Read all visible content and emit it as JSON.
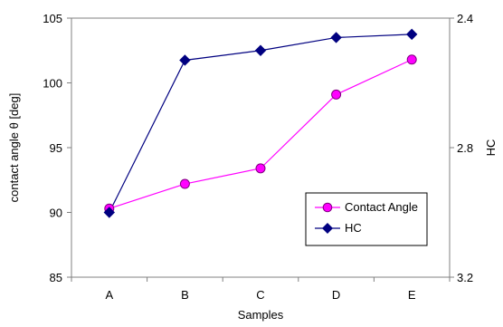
{
  "chart_data": {
    "type": "line",
    "title": "",
    "categories": [
      "A",
      "B",
      "C",
      "D",
      "E"
    ],
    "xlabel": "Samples",
    "ylabel_left": "contact angle θ [deg]",
    "ylabel_right": "HC",
    "left_axis": {
      "ylim": [
        85,
        105
      ],
      "ticks": [
        "85",
        "90",
        "95",
        "100",
        "105"
      ]
    },
    "right_axis": {
      "ylim": [
        3.2,
        2.4
      ],
      "ticks": [
        "3.2",
        "2.8",
        "2.4"
      ],
      "reversed": true
    },
    "series": [
      {
        "name": "Contact Angle",
        "axis": "left",
        "values": [
          90.3,
          92.2,
          93.4,
          99.1,
          101.8
        ],
        "color": "#ff00ff",
        "marker": "circle",
        "line_color": "#ff00ff"
      },
      {
        "name": "HC",
        "axis": "right",
        "values": [
          3.0,
          2.53,
          2.5,
          2.46,
          2.45
        ],
        "color": "#000080",
        "marker": "diamond",
        "line_color": "#000080"
      }
    ],
    "legend": {
      "placement": "lower-right",
      "entries": [
        "Contact Angle",
        "HC"
      ]
    },
    "grid": false
  }
}
